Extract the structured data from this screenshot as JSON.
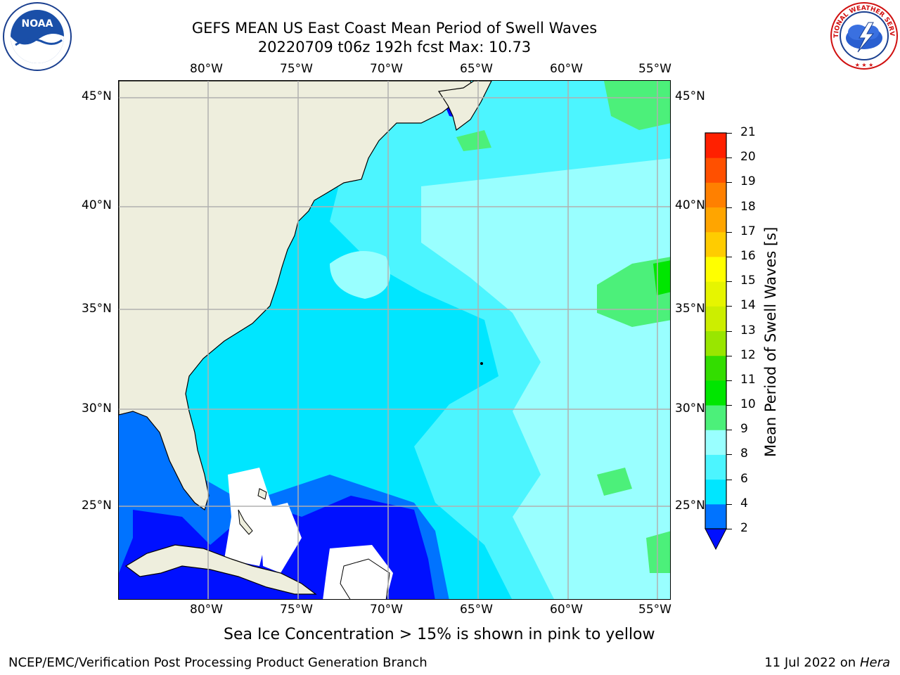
{
  "header": {
    "title_line1": "GEFS MEAN US East Coast Mean Period of Swell Waves",
    "title_line2": "20220709 t06z 192h fcst   Max: 10.73"
  },
  "logos": {
    "left": {
      "name": "noaa-logo",
      "text": "NOAA"
    },
    "right": {
      "name": "nws-logo",
      "text": "NATIONAL WEATHER SERVICE"
    }
  },
  "map": {
    "lon_labels": [
      "80°W",
      "75°W",
      "70°W",
      "65°W",
      "60°W",
      "55°W"
    ],
    "lat_labels": [
      "45°N",
      "40°N",
      "35°N",
      "30°N",
      "25°N"
    ],
    "colors": {
      "land": "#eeeedd",
      "coast": "#000000",
      "grid": "#b0b0b0",
      "ice_free_white": "#ffffff"
    }
  },
  "colorbar": {
    "label": "Mean Period of Swell Waves [s]",
    "ticks": [
      "2",
      "4",
      "6",
      "8",
      "9",
      "10",
      "11",
      "12",
      "13",
      "14",
      "15",
      "16",
      "17",
      "18",
      "19",
      "20",
      "21"
    ],
    "levels": [
      {
        "from": 2,
        "to": 4,
        "color": "#0073ff"
      },
      {
        "from": 4,
        "to": 6,
        "color": "#00e6ff"
      },
      {
        "from": 6,
        "to": 8,
        "color": "#4cf5ff"
      },
      {
        "from": 8,
        "to": 9,
        "color": "#99ffff"
      },
      {
        "from": 9,
        "to": 10,
        "color": "#4cf07a"
      },
      {
        "from": 10,
        "to": 11,
        "color": "#00e600"
      },
      {
        "from": 11,
        "to": 12,
        "color": "#33dd00"
      },
      {
        "from": 12,
        "to": 13,
        "color": "#99e600"
      },
      {
        "from": 13,
        "to": 14,
        "color": "#ccee00"
      },
      {
        "from": 14,
        "to": 15,
        "color": "#e6f500"
      },
      {
        "from": 15,
        "to": 16,
        "color": "#ffff00"
      },
      {
        "from": 16,
        "to": 17,
        "color": "#ffcc00"
      },
      {
        "from": 17,
        "to": 18,
        "color": "#ffa500"
      },
      {
        "from": 18,
        "to": 19,
        "color": "#ff8000"
      },
      {
        "from": 19,
        "to": 20,
        "color": "#ff5000"
      },
      {
        "from": 20,
        "to": 21,
        "color": "#ff2000"
      }
    ],
    "under_color": "#0010ff"
  },
  "caption": "Sea Ice Concentration > 15% is shown in pink to yellow",
  "footer": {
    "left": "NCEP/EMC/Verification Post Processing Product Generation Branch",
    "right_date": "11 Jul 2022 on ",
    "right_host": "Hera"
  }
}
